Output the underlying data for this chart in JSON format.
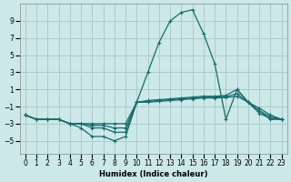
{
  "xlabel": "Humidex (Indice chaleur)",
  "bg_color": "#cce8e8",
  "grid_color": "#aacccc",
  "line_color": "#1a6b6b",
  "xlim": [
    -0.5,
    23.5
  ],
  "ylim": [
    -6.5,
    11.0
  ],
  "yticks": [
    -5,
    -3,
    -1,
    1,
    3,
    5,
    7,
    9
  ],
  "xticks": [
    0,
    1,
    2,
    3,
    4,
    5,
    6,
    7,
    8,
    9,
    10,
    11,
    12,
    13,
    14,
    15,
    16,
    17,
    18,
    19,
    20,
    21,
    22,
    23
  ],
  "series": [
    {
      "x": [
        0,
        1,
        2,
        3,
        4,
        5,
        6,
        7,
        8,
        9,
        10,
        11,
        12,
        13,
        14,
        15,
        16,
        17,
        18,
        19,
        20,
        21,
        22,
        23
      ],
      "y": [
        -2,
        -2.5,
        -2.5,
        -2.5,
        -3,
        -3.5,
        -4.5,
        -4.5,
        -5,
        -4.5,
        -0.5,
        3,
        6.5,
        9,
        10,
        10.3,
        7.5,
        4,
        -2.5,
        1,
        -0.5,
        -1.5,
        -2.5,
        -2.5
      ]
    },
    {
      "x": [
        0,
        1,
        2,
        3,
        4,
        5,
        6,
        7,
        8,
        9,
        10,
        11,
        12,
        13,
        14,
        15,
        16,
        17,
        18,
        19,
        20,
        21,
        22,
        23
      ],
      "y": [
        -2,
        -2.5,
        -2.5,
        -2.5,
        -3,
        -3,
        -3.5,
        -3.5,
        -4,
        -4,
        -0.5,
        -0.3,
        -0.2,
        -0.1,
        0,
        0.1,
        0.2,
        0.2,
        0.3,
        1.0,
        -0.5,
        -1.2,
        -2,
        -2.5
      ]
    },
    {
      "x": [
        0,
        1,
        2,
        3,
        4,
        5,
        6,
        7,
        8,
        9,
        10,
        11,
        12,
        13,
        14,
        15,
        16,
        17,
        18,
        19,
        20,
        21,
        22,
        23
      ],
      "y": [
        -2,
        -2.5,
        -2.5,
        -2.5,
        -3,
        -3,
        -3.2,
        -3.2,
        -3.5,
        -3.5,
        -0.5,
        -0.4,
        -0.3,
        -0.2,
        -0.1,
        0,
        0.1,
        0.1,
        0.15,
        0.5,
        -0.5,
        -1.5,
        -2.2,
        -2.5
      ]
    },
    {
      "x": [
        0,
        1,
        2,
        3,
        4,
        5,
        6,
        7,
        8,
        9,
        10,
        11,
        12,
        13,
        14,
        15,
        16,
        17,
        18,
        19,
        20,
        21,
        22,
        23
      ],
      "y": [
        -2,
        -2.5,
        -2.5,
        -2.5,
        -3,
        -3,
        -3,
        -3,
        -3,
        -3,
        -0.5,
        -0.5,
        -0.4,
        -0.3,
        -0.2,
        -0.1,
        0,
        0,
        0.05,
        0.2,
        -0.5,
        -1.8,
        -2.4,
        -2.5
      ]
    }
  ]
}
